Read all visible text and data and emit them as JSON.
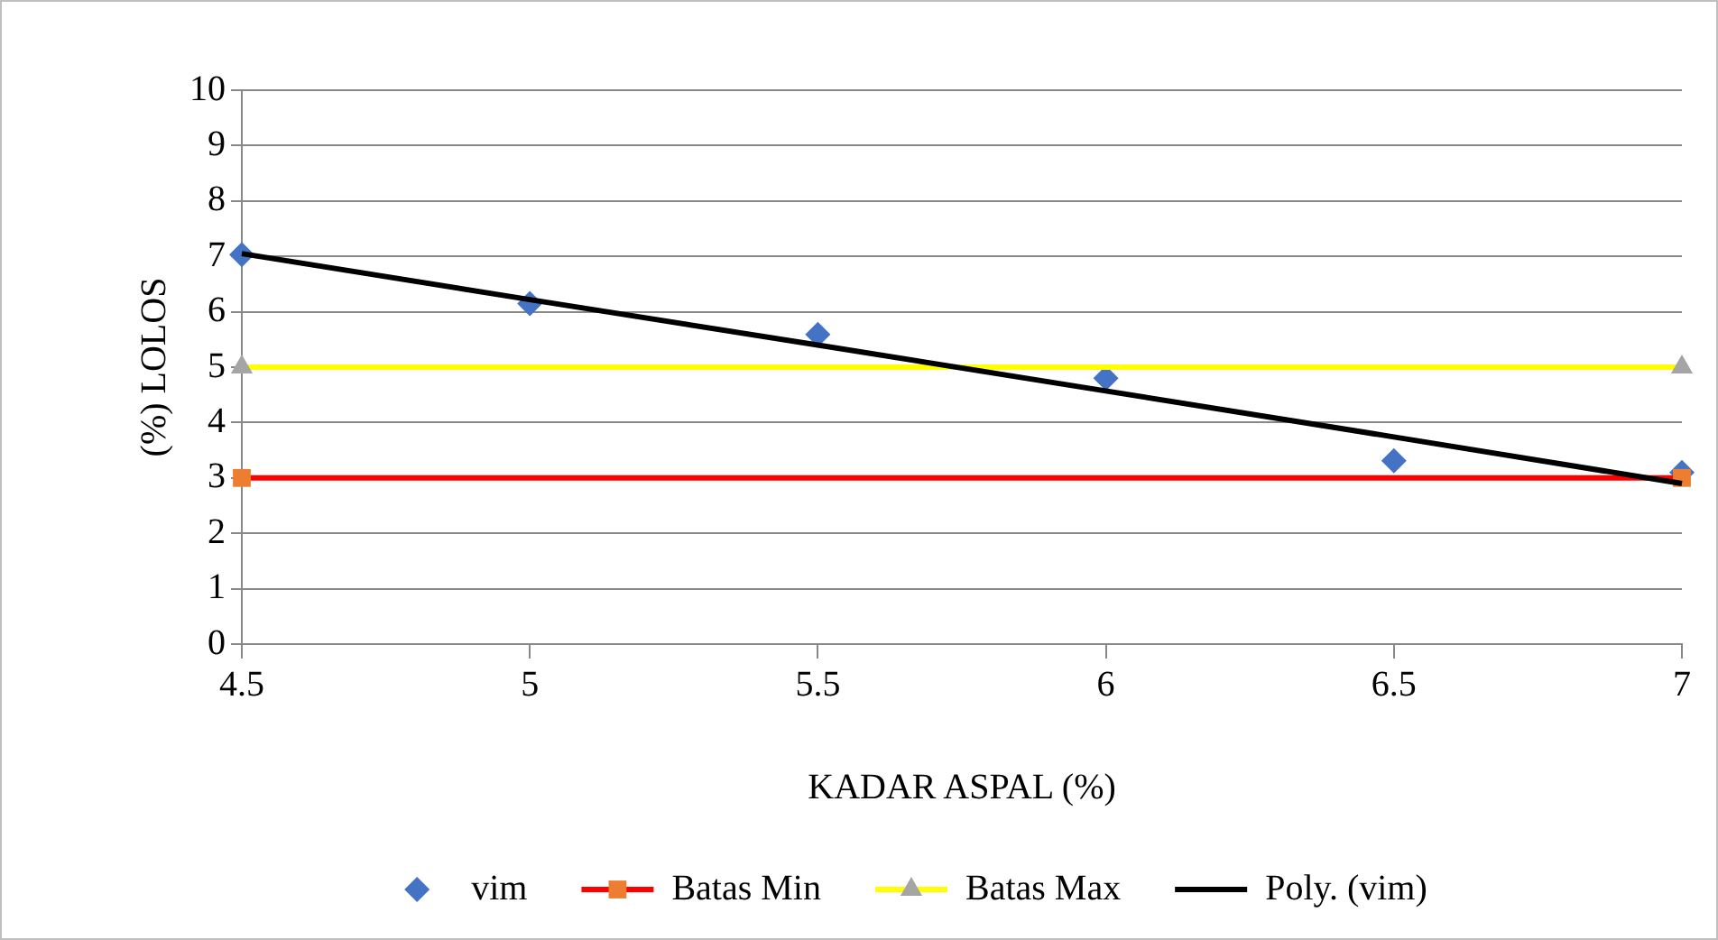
{
  "chart_data": {
    "type": "scatter",
    "xlabel": "KADAR ASPAL (%)",
    "ylabel": "(%) LOLOS",
    "x": [
      4.5,
      5,
      5.5,
      6,
      6.5,
      7
    ],
    "series": [
      {
        "name": "vim",
        "type": "scatter",
        "color": "#4472c4",
        "marker": "diamond",
        "values": [
          7.03,
          6.15,
          5.59,
          4.8,
          3.31,
          3.1
        ]
      },
      {
        "name": "Batas Min",
        "type": "line",
        "color": "#ff0000",
        "colors": [
          "#ed7d31",
          "#ed7d31"
        ],
        "marker": "square",
        "x": [
          4.5,
          7
        ],
        "values": [
          3,
          3
        ]
      },
      {
        "name": "Batas Max",
        "type": "line",
        "color": "#ffff00",
        "colors": [
          "#a5a5a5",
          "#a5a5a5"
        ],
        "marker": "triangle",
        "x": [
          4.5,
          7
        ],
        "values": [
          5,
          5
        ]
      },
      {
        "name": "Poly. (vim)",
        "type": "line",
        "color": "#000000",
        "marker": "none",
        "x": [
          4.5,
          5,
          5.5,
          6,
          6.5,
          7
        ],
        "values": [
          7.05,
          6.22,
          5.4,
          4.57,
          3.74,
          2.9
        ]
      }
    ],
    "xlim": [
      4.5,
      7
    ],
    "xticks": [
      4.5,
      5,
      5.5,
      6,
      6.5,
      7
    ],
    "ylim": [
      0,
      10
    ],
    "yticks": [
      0,
      1,
      2,
      3,
      4,
      5,
      6,
      7,
      8,
      9,
      10
    ],
    "grid": "y",
    "legend": "bottom"
  }
}
